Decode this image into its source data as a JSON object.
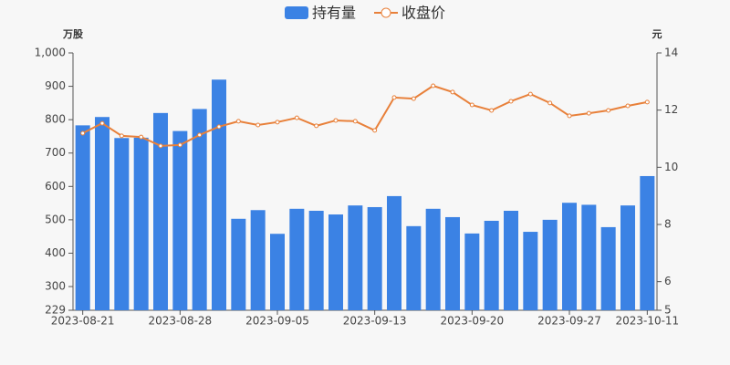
{
  "chart_data": {
    "type": "bar",
    "y_label": "万股",
    "y2_label": "元",
    "categories": [
      "2023-08-21",
      null,
      null,
      null,
      null,
      "2023-08-28",
      null,
      null,
      null,
      null,
      "2023-09-05",
      null,
      null,
      null,
      null,
      "2023-09-13",
      null,
      null,
      null,
      null,
      "2023-09-20",
      null,
      null,
      null,
      null,
      "2023-09-27",
      null,
      null,
      null,
      "2023-10-11"
    ],
    "series": [
      {
        "name": "持有量",
        "type": "bar",
        "color": "#3b82e4",
        "values": [
          783,
          808,
          745,
          746,
          820,
          766,
          832,
          920,
          503,
          529,
          458,
          533,
          527,
          516,
          543,
          538,
          571,
          481,
          533,
          508,
          459,
          497,
          527,
          464,
          500,
          551,
          545,
          478,
          543,
          631
        ]
      },
      {
        "name": "收盘价",
        "type": "line",
        "axis": "y2",
        "color": "#e8803a",
        "values": [
          11.19,
          11.54,
          11.1,
          11.06,
          10.75,
          10.78,
          11.13,
          11.42,
          11.61,
          11.48,
          11.58,
          11.73,
          11.45,
          11.64,
          11.61,
          11.29,
          12.44,
          12.4,
          12.85,
          12.63,
          12.18,
          11.99,
          12.31,
          12.56,
          12.25,
          11.8,
          11.89,
          11.99,
          12.15,
          12.28
        ]
      }
    ],
    "ylim": [
      229,
      1000
    ],
    "yticks": [
      229,
      300,
      400,
      500,
      600,
      700,
      800,
      900,
      {
        "value": 1000,
        "label": "1,000"
      }
    ],
    "y2lim": [
      5,
      14
    ],
    "y2ticks": [
      5,
      6,
      8,
      10,
      12,
      14
    ],
    "legend": "top"
  }
}
